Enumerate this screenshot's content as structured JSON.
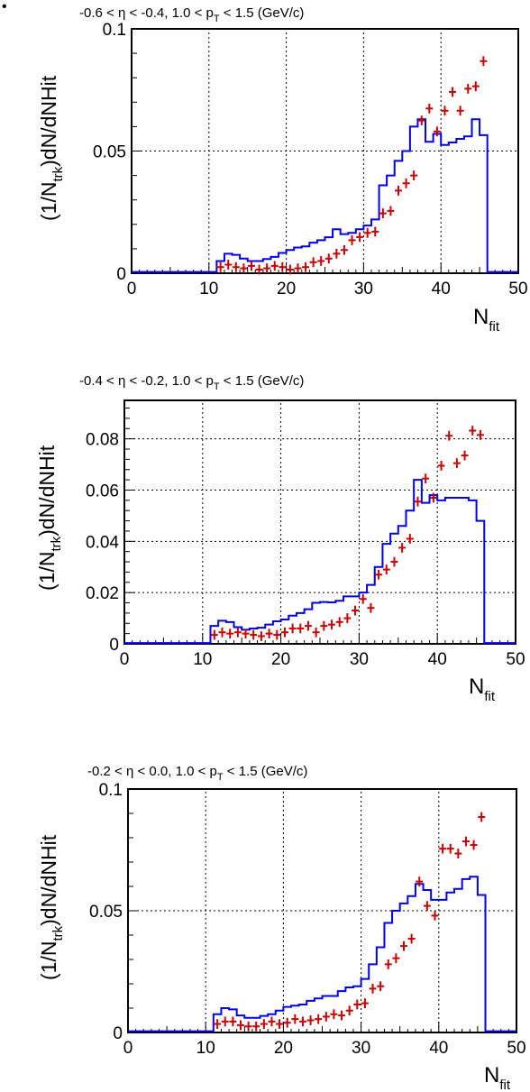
{
  "bullet": "•",
  "colors": {
    "mc": "#0000ee",
    "data": "#cc0000",
    "grid": "#000000"
  },
  "chart_data": [
    {
      "type": "line",
      "title_parts": [
        "-0.6 < ",
        "η",
        " < -0.4, 1.0 < p",
        "T",
        " < 1.5 (GeV/c)"
      ],
      "xlabel": [
        "N",
        "fit"
      ],
      "ylabel": [
        "(1/N",
        "trk",
        ")dN/dNHit"
      ],
      "xlim": [
        0,
        50
      ],
      "ylim": [
        0,
        0.1
      ],
      "xticks": [
        0,
        10,
        20,
        30,
        40,
        50
      ],
      "xtick_labels": [
        "0",
        "10",
        "20",
        "30",
        "40",
        "50"
      ],
      "yticks": [
        0,
        0.05,
        0.1
      ],
      "ytick_labels": [
        "0",
        "0.05",
        "0.1"
      ],
      "grid": true,
      "series": [
        {
          "style": "histogram",
          "x": [
            0,
            1,
            2,
            3,
            4,
            5,
            6,
            7,
            8,
            9,
            10,
            11,
            12,
            13,
            14,
            15,
            16,
            17,
            18,
            19,
            20,
            21,
            22,
            23,
            24,
            25,
            26,
            27,
            28,
            29,
            30,
            31,
            32,
            33,
            34,
            35,
            36,
            37,
            38,
            39,
            40,
            41,
            42,
            43,
            44,
            45,
            46,
            47,
            48,
            49
          ],
          "values": [
            0.0005,
            0.0005,
            0.0005,
            0.0005,
            0.0005,
            0.0005,
            0.0005,
            0.0005,
            0.0005,
            0.0005,
            0.0005,
            0.005,
            0.008,
            0.0075,
            0.006,
            0.005,
            0.005,
            0.0058,
            0.0067,
            0.0083,
            0.0095,
            0.0105,
            0.011,
            0.0125,
            0.0135,
            0.0147,
            0.018,
            0.016,
            0.0165,
            0.018,
            0.0195,
            0.022,
            0.036,
            0.04,
            0.046,
            0.05,
            0.06,
            0.063,
            0.0538,
            0.057,
            0.0525,
            0.0535,
            0.055,
            0.056,
            0.063,
            0.0565,
            0.0005,
            0.0005,
            0.0005,
            0.0005
          ]
        },
        {
          "style": "points",
          "x": [
            11.5,
            12.5,
            13.5,
            14.5,
            15.5,
            16.5,
            17.5,
            18.5,
            19.5,
            20.5,
            21.5,
            22.5,
            23.5,
            24.5,
            25.5,
            26.5,
            27.5,
            28.5,
            29.5,
            30.5,
            31.5,
            32.5,
            33.5,
            34.5,
            35.5,
            36.5,
            37.5,
            38.5,
            39.5,
            40.5,
            41.5,
            42.5,
            43.5,
            44.5,
            45.5
          ],
          "values": [
            0.0025,
            0.0035,
            0.0025,
            0.002,
            0.003,
            0.0015,
            0.002,
            0.003,
            0.0025,
            0.0015,
            0.002,
            0.0025,
            0.0045,
            0.005,
            0.006,
            0.008,
            0.0095,
            0.0135,
            0.0148,
            0.0165,
            0.017,
            0.0245,
            0.0255,
            0.0338,
            0.0368,
            0.04,
            0.0625,
            0.0674,
            0.058,
            0.0665,
            0.0742,
            0.0665,
            0.0755,
            0.0765,
            0.0868
          ]
        }
      ]
    },
    {
      "type": "line",
      "title_parts": [
        "-0.4 < ",
        "η",
        " < -0.2, 1.0 < p",
        "T",
        " < 1.5 (GeV/c)"
      ],
      "xlabel": [
        "N",
        "fit"
      ],
      "ylabel": [
        "(1/N",
        "trk",
        ")dN/dNHit"
      ],
      "xlim": [
        0,
        50
      ],
      "ylim": [
        0,
        0.095
      ],
      "xticks": [
        0,
        10,
        20,
        30,
        40,
        50
      ],
      "xtick_labels": [
        "0",
        "10",
        "20",
        "30",
        "40",
        "50"
      ],
      "yticks": [
        0,
        0.02,
        0.04,
        0.06,
        0.08
      ],
      "ytick_labels": [
        "0",
        "0.02",
        "0.04",
        "0.06",
        "0.08"
      ],
      "grid": true,
      "series": [
        {
          "style": "histogram",
          "x": [
            0,
            1,
            2,
            3,
            4,
            5,
            6,
            7,
            8,
            9,
            10,
            11,
            12,
            13,
            14,
            15,
            16,
            17,
            18,
            19,
            20,
            21,
            22,
            23,
            24,
            25,
            26,
            27,
            28,
            29,
            30,
            31,
            32,
            33,
            34,
            35,
            36,
            37,
            38,
            39,
            40,
            41,
            42,
            43,
            44,
            45,
            46,
            47,
            48,
            49
          ],
          "values": [
            0.0003,
            0.0003,
            0.0003,
            0.0003,
            0.0003,
            0.0003,
            0.0003,
            0.0003,
            0.0003,
            0.0003,
            0.0003,
            0.007,
            0.009,
            0.0085,
            0.0065,
            0.0055,
            0.006,
            0.0063,
            0.0075,
            0.0088,
            0.0095,
            0.011,
            0.012,
            0.0135,
            0.016,
            0.0163,
            0.0162,
            0.0168,
            0.0185,
            0.0185,
            0.02,
            0.023,
            0.03,
            0.039,
            0.043,
            0.046,
            0.052,
            0.064,
            0.055,
            0.058,
            0.056,
            0.057,
            0.057,
            0.057,
            0.056,
            0.048,
            0.0003,
            0.0003,
            0.0003,
            0.0003
          ]
        },
        {
          "style": "points",
          "x": [
            11.5,
            12.5,
            13.5,
            14.5,
            15.5,
            16.5,
            17.5,
            18.5,
            19.5,
            20.5,
            21.5,
            22.5,
            23.5,
            24.5,
            25.5,
            26.5,
            27.5,
            28.5,
            29.5,
            30.5,
            31.5,
            32.5,
            33.5,
            34.5,
            35.5,
            36.5,
            37.5,
            38.5,
            39.5,
            40.5,
            41.5,
            42.5,
            43.5,
            44.5,
            45.5
          ],
          "values": [
            0.0035,
            0.0045,
            0.004,
            0.0045,
            0.004,
            0.0035,
            0.003,
            0.004,
            0.0035,
            0.0045,
            0.006,
            0.006,
            0.007,
            0.0045,
            0.007,
            0.0075,
            0.0085,
            0.01,
            0.013,
            0.0175,
            0.014,
            0.027,
            0.029,
            0.032,
            0.0375,
            0.041,
            0.0555,
            0.0645,
            0.057,
            0.0695,
            0.0812,
            0.0705,
            0.0735,
            0.0832,
            0.0815
          ]
        }
      ]
    },
    {
      "type": "line",
      "title_parts": [
        "-0.2 < ",
        "η",
        " < 0.0, 1.0 < p",
        "T",
        " < 1.5 (GeV/c)"
      ],
      "xlabel": [
        "N",
        "fit"
      ],
      "ylabel": [
        "(1/N",
        "trk",
        ")dN/dNHit"
      ],
      "xlim": [
        0,
        50
      ],
      "ylim": [
        0,
        0.1
      ],
      "xticks": [
        0,
        10,
        20,
        30,
        40,
        50
      ],
      "xtick_labels": [
        "0",
        "10",
        "20",
        "30",
        "40",
        "50"
      ],
      "yticks": [
        0,
        0.05,
        0.1
      ],
      "ytick_labels": [
        "0",
        "0.05",
        "0.1"
      ],
      "grid": true,
      "series": [
        {
          "style": "histogram",
          "x": [
            0,
            1,
            2,
            3,
            4,
            5,
            6,
            7,
            8,
            9,
            10,
            11,
            12,
            13,
            14,
            15,
            16,
            17,
            18,
            19,
            20,
            21,
            22,
            23,
            24,
            25,
            26,
            27,
            28,
            29,
            30,
            31,
            32,
            33,
            34,
            35,
            36,
            37,
            38,
            39,
            40,
            41,
            42,
            43,
            44,
            45,
            46,
            47,
            48,
            49
          ],
          "values": [
            0.0005,
            0.0005,
            0.0005,
            0.0005,
            0.0005,
            0.0005,
            0.0005,
            0.0005,
            0.0005,
            0.0005,
            0.0005,
            0.0075,
            0.01,
            0.0095,
            0.007,
            0.006,
            0.006,
            0.0068,
            0.0075,
            0.009,
            0.0105,
            0.011,
            0.0115,
            0.013,
            0.014,
            0.015,
            0.015,
            0.017,
            0.0185,
            0.019,
            0.022,
            0.028,
            0.035,
            0.045,
            0.05,
            0.053,
            0.056,
            0.061,
            0.0585,
            0.0545,
            0.0545,
            0.0575,
            0.059,
            0.063,
            0.064,
            0.0565,
            0.0005,
            0.0005,
            0.0005,
            0.0005
          ]
        },
        {
          "style": "points",
          "x": [
            11.5,
            12.5,
            13.5,
            14.5,
            15.5,
            16.5,
            17.5,
            18.5,
            19.5,
            20.5,
            21.5,
            22.5,
            23.5,
            24.5,
            25.5,
            26.5,
            27.5,
            28.5,
            29.5,
            30.5,
            31.5,
            32.5,
            33.5,
            34.5,
            35.5,
            36.5,
            37.5,
            38.5,
            39.5,
            40.5,
            41.5,
            42.5,
            43.5,
            44.5,
            45.5
          ],
          "values": [
            0.0035,
            0.0045,
            0.0045,
            0.003,
            0.0025,
            0.0025,
            0.0035,
            0.0045,
            0.0035,
            0.004,
            0.0055,
            0.0045,
            0.005,
            0.0055,
            0.0065,
            0.0075,
            0.007,
            0.009,
            0.0115,
            0.012,
            0.018,
            0.019,
            0.028,
            0.0305,
            0.0355,
            0.0385,
            0.062,
            0.052,
            0.048,
            0.0755,
            0.0755,
            0.0735,
            0.0785,
            0.077,
            0.0885
          ]
        }
      ]
    }
  ]
}
